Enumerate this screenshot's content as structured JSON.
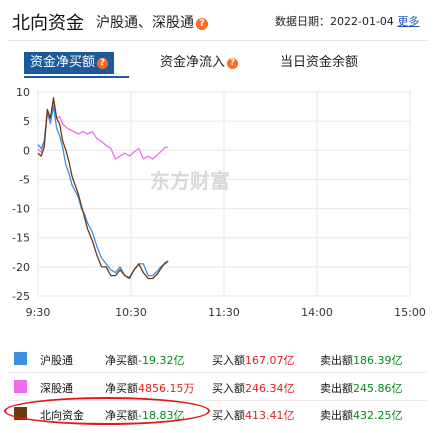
{
  "header": {
    "title": "北向资金",
    "subtitle": "沪股通、深股通",
    "help": "?",
    "date_label": "数据日期：",
    "date_value": "2022-01-04",
    "more_link": "更多"
  },
  "tabs": [
    {
      "label": "资金净买额",
      "help": "?",
      "active": true
    },
    {
      "label": "资金净流入",
      "help": "?",
      "active": false
    },
    {
      "label": "当日资金余额",
      "help": "",
      "active": false
    }
  ],
  "watermark": "东方财富",
  "colors": {
    "hgt": "#3d8fe0",
    "sgt": "#ee6cee",
    "north": "#6b3a12",
    "accent": "#1e5a9a",
    "up": "#e02020",
    "down": "#00891a"
  },
  "chart_data": {
    "type": "line",
    "x_ticks": [
      "9:30",
      "10:30",
      "11:30",
      "14:00",
      "15:00"
    ],
    "y_ticks": [
      10,
      5,
      0,
      -5,
      -10,
      -15,
      -20,
      -25
    ],
    "ylim": [
      -25,
      10
    ],
    "ylabel": "",
    "xlabel": "",
    "grid": true,
    "series": [
      {
        "name": "沪股通",
        "color": "#3d8fe0",
        "points": [
          [
            0,
            1
          ],
          [
            2,
            0.3
          ],
          [
            4,
            1.6
          ],
          [
            6,
            6.5
          ],
          [
            8,
            4.8
          ],
          [
            10,
            7.5
          ],
          [
            12,
            3.8
          ],
          [
            14,
            2.5
          ],
          [
            16,
            0.3
          ],
          [
            18,
            -2.5
          ],
          [
            20,
            -4
          ],
          [
            22,
            -6
          ],
          [
            24,
            -7
          ],
          [
            26,
            -8
          ],
          [
            28,
            -10
          ],
          [
            30,
            -11
          ],
          [
            32,
            -12.5
          ],
          [
            35,
            -14
          ],
          [
            38,
            -16.5
          ],
          [
            41,
            -18.5
          ],
          [
            44,
            -19.5
          ],
          [
            47,
            -20.5
          ],
          [
            50,
            -21
          ],
          [
            53,
            -20
          ],
          [
            56,
            -21.5
          ],
          [
            59,
            -21.8
          ],
          [
            62,
            -20.5
          ],
          [
            65,
            -19.5
          ],
          [
            68,
            -19.5
          ],
          [
            71,
            -21.5
          ],
          [
            74,
            -21.5
          ],
          [
            77,
            -20.7
          ],
          [
            80,
            -19.8
          ],
          [
            82,
            -19.5
          ],
          [
            84,
            -19
          ]
        ]
      },
      {
        "name": "深股通",
        "color": "#ee6cee",
        "points": [
          [
            0,
            0.2
          ],
          [
            2,
            -0.3
          ],
          [
            4,
            1.5
          ],
          [
            6,
            6.5
          ],
          [
            8,
            4.5
          ],
          [
            10,
            8.5
          ],
          [
            12,
            5.5
          ],
          [
            14,
            5.8
          ],
          [
            16,
            4.5
          ],
          [
            18,
            4
          ],
          [
            20,
            3.6
          ],
          [
            23,
            3.2
          ],
          [
            26,
            2.8
          ],
          [
            29,
            3.2
          ],
          [
            32,
            2.8
          ],
          [
            35,
            3.2
          ],
          [
            38,
            2
          ],
          [
            41,
            1.5
          ],
          [
            44,
            0.8
          ],
          [
            47,
            0.3
          ],
          [
            50,
            -1.5
          ],
          [
            53,
            -1
          ],
          [
            56,
            -0.5
          ],
          [
            59,
            -1
          ],
          [
            62,
            -0.3
          ],
          [
            65,
            0.3
          ],
          [
            68,
            -1.5
          ],
          [
            71,
            -1
          ],
          [
            74,
            -1.5
          ],
          [
            77,
            -0.8
          ],
          [
            80,
            0
          ],
          [
            82,
            0.5
          ],
          [
            84,
            0.5
          ]
        ]
      },
      {
        "name": "北向资金",
        "color": "#6b3a12",
        "points": [
          [
            0,
            -0.5
          ],
          [
            2,
            -1
          ],
          [
            4,
            0.5
          ],
          [
            6,
            7
          ],
          [
            8,
            5.5
          ],
          [
            10,
            9
          ],
          [
            12,
            5.5
          ],
          [
            14,
            4.5
          ],
          [
            16,
            1.5
          ],
          [
            18,
            0
          ],
          [
            20,
            -2
          ],
          [
            22,
            -4.5
          ],
          [
            24,
            -6
          ],
          [
            26,
            -7.5
          ],
          [
            28,
            -9.5
          ],
          [
            30,
            -11.5
          ],
          [
            32,
            -13.5
          ],
          [
            35,
            -15.5
          ],
          [
            38,
            -18
          ],
          [
            41,
            -20
          ],
          [
            44,
            -20
          ],
          [
            47,
            -21.5
          ],
          [
            50,
            -21.5
          ],
          [
            53,
            -20.5
          ],
          [
            56,
            -21.5
          ],
          [
            59,
            -22
          ],
          [
            62,
            -20.5
          ],
          [
            65,
            -19.5
          ],
          [
            68,
            -21
          ],
          [
            71,
            -22
          ],
          [
            74,
            -22
          ],
          [
            77,
            -21.2
          ],
          [
            80,
            -20
          ],
          [
            82,
            -19.3
          ],
          [
            84,
            -19
          ]
        ]
      }
    ]
  },
  "legend": [
    {
      "name": "沪股通",
      "net_label": "净买额",
      "net_value": "-19.32亿",
      "buy_label": "买入额",
      "buy_value": "167.07亿",
      "sell_label": "卖出额",
      "sell_value": "186.39亿",
      "net_dir": "down"
    },
    {
      "name": "深股通",
      "net_label": "净买额",
      "net_value": "4856.15万",
      "buy_label": "买入额",
      "buy_value": "246.34亿",
      "sell_label": "卖出额",
      "sell_value": "245.86亿",
      "net_dir": "up"
    },
    {
      "name": "北向资金",
      "net_label": "净买额",
      "net_value": "-18.83亿",
      "buy_label": "买入额",
      "buy_value": "413.41亿",
      "sell_label": "卖出额",
      "sell_value": "432.25亿",
      "net_dir": "down"
    }
  ]
}
